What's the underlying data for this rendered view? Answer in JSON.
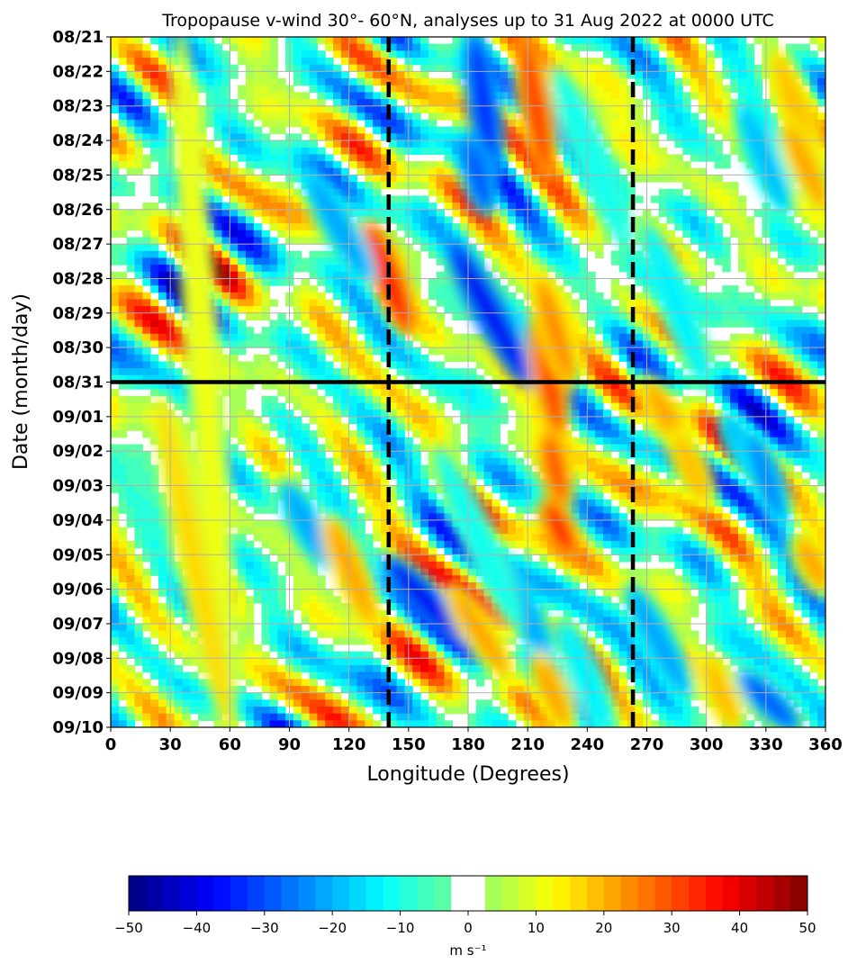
{
  "chart_data": {
    "type": "heatmap",
    "title": "Tropopause v-wind 30°- 60°N, analyses up to 31 Aug 2022 at 0000 UTC",
    "xlabel": "Longitude (Degrees)",
    "ylabel": "Date (month/day)",
    "xlim": [
      0,
      360
    ],
    "x_ticks": [
      "0",
      "30",
      "60",
      "90",
      "120",
      "150",
      "180",
      "210",
      "240",
      "270",
      "300",
      "330",
      "360"
    ],
    "y_ticks": [
      "08/21",
      "08/22",
      "08/23",
      "08/24",
      "08/25",
      "08/26",
      "08/27",
      "08/28",
      "08/29",
      "08/30",
      "08/31",
      "09/01",
      "09/02",
      "09/03",
      "09/04",
      "09/05",
      "09/06",
      "09/07",
      "09/08",
      "09/09",
      "09/10"
    ],
    "grid": true,
    "analysis_line_date": "08/31",
    "reference_longitudes": [
      140,
      263
    ],
    "colorbar": {
      "label": "m s⁻¹",
      "min": -50,
      "max": 50,
      "interval": 2.5,
      "blank_range": [
        -2.5,
        2.5
      ],
      "ticks": [
        "−50",
        "−40",
        "−30",
        "−20",
        "−10",
        "0",
        "10",
        "20",
        "30",
        "40",
        "50"
      ],
      "colormap": "jet"
    },
    "features": [
      {
        "day_start": 0,
        "lon_start": 183,
        "day_end": 4,
        "lon_end": 193,
        "value": -34
      },
      {
        "day_start": 3,
        "lon_start": 180,
        "day_end": 5,
        "lon_end": 190,
        "value": -30
      },
      {
        "day_start": 6,
        "lon_start": 172,
        "day_end": 10,
        "lon_end": 210,
        "value": -38
      },
      {
        "day_start": 0,
        "lon_start": 208,
        "day_end": 4,
        "lon_end": 220,
        "value": 32
      },
      {
        "day_start": 5.5,
        "lon_start": 130,
        "day_end": 8.5,
        "lon_end": 150,
        "value": 37
      },
      {
        "day_start": 8,
        "lon_start": 215,
        "day_end": 11.5,
        "lon_end": 226,
        "value": 30
      },
      {
        "day_start": 11.5,
        "lon_start": 220,
        "day_end": 13.5,
        "lon_end": 228,
        "value": 29
      },
      {
        "day_start": 13.5,
        "lon_start": 220,
        "day_end": 15,
        "lon_end": 232,
        "value": 33
      },
      {
        "day_start": 15.2,
        "lon_start": 140,
        "day_end": 17.5,
        "lon_end": 178,
        "value": -40
      },
      {
        "day_start": 4,
        "lon_start": 100,
        "day_end": 7,
        "lon_end": 130,
        "value": -22
      },
      {
        "day_start": 13,
        "lon_start": 88,
        "day_end": 15.3,
        "lon_end": 110,
        "value": -22
      },
      {
        "day_start": 14,
        "lon_start": 110,
        "day_end": 17,
        "lon_end": 132,
        "value": 22
      },
      {
        "day_start": 16,
        "lon_start": 172,
        "day_end": 18.5,
        "lon_end": 200,
        "value": 20
      },
      {
        "day_start": 15,
        "lon_start": 195,
        "day_end": 18,
        "lon_end": 220,
        "value": -22
      },
      {
        "day_start": 17,
        "lon_start": 228,
        "day_end": 20,
        "lon_end": 250,
        "value": -15
      },
      {
        "day_start": 18,
        "lon_start": 215,
        "day_end": 20,
        "lon_end": 230,
        "value": 20
      },
      {
        "day_start": 10,
        "lon_start": 270,
        "day_end": 12.5,
        "lon_end": 295,
        "value": 22
      },
      {
        "day_start": 11.5,
        "lon_start": 285,
        "day_end": 13.5,
        "lon_end": 300,
        "value": 18
      },
      {
        "day_start": 11,
        "lon_start": 310,
        "day_end": 13,
        "lon_end": 330,
        "value": -18
      },
      {
        "day_start": 11.5,
        "lon_start": 322,
        "day_end": 14,
        "lon_end": 338,
        "value": -25
      },
      {
        "day_start": 2,
        "lon_start": 318,
        "day_end": 5,
        "lon_end": 340,
        "value": -18
      },
      {
        "day_start": 0.5,
        "lon_start": 335,
        "day_end": 4,
        "lon_end": 358,
        "value": 18
      },
      {
        "day_start": 2.5,
        "lon_start": 340,
        "day_end": 5,
        "lon_end": 360,
        "value": 20
      },
      {
        "day_start": 16,
        "lon_start": 262,
        "day_end": 19,
        "lon_end": 290,
        "value": -22
      },
      {
        "day_start": 18.5,
        "lon_start": 318,
        "day_end": 20,
        "lon_end": 345,
        "value": -28
      },
      {
        "day_start": 14.5,
        "lon_start": 347,
        "day_end": 16,
        "lon_end": 360,
        "value": 20
      },
      {
        "day_start": 0,
        "lon_start": 35,
        "day_end": 20,
        "lon_end": 60,
        "value": 12
      },
      {
        "day_start": 10.5,
        "lon_start": 25,
        "day_end": 20,
        "lon_end": 60,
        "value": 15
      },
      {
        "day_start": 1,
        "lon_start": 225,
        "day_end": 6,
        "lon_end": 260,
        "value": -12
      },
      {
        "day_start": 12,
        "lon_start": 165,
        "day_end": 17,
        "lon_end": 205,
        "value": -12
      },
      {
        "day_start": 5.5,
        "lon_start": 270,
        "day_end": 10,
        "lon_end": 300,
        "value": -15
      },
      {
        "day_start": 18,
        "lon_start": 300,
        "day_end": 20,
        "lon_end": 315,
        "value": 18
      },
      {
        "day_start": 7,
        "lon_start": 216,
        "day_end": 10,
        "lon_end": 232,
        "value": 24
      }
    ]
  }
}
